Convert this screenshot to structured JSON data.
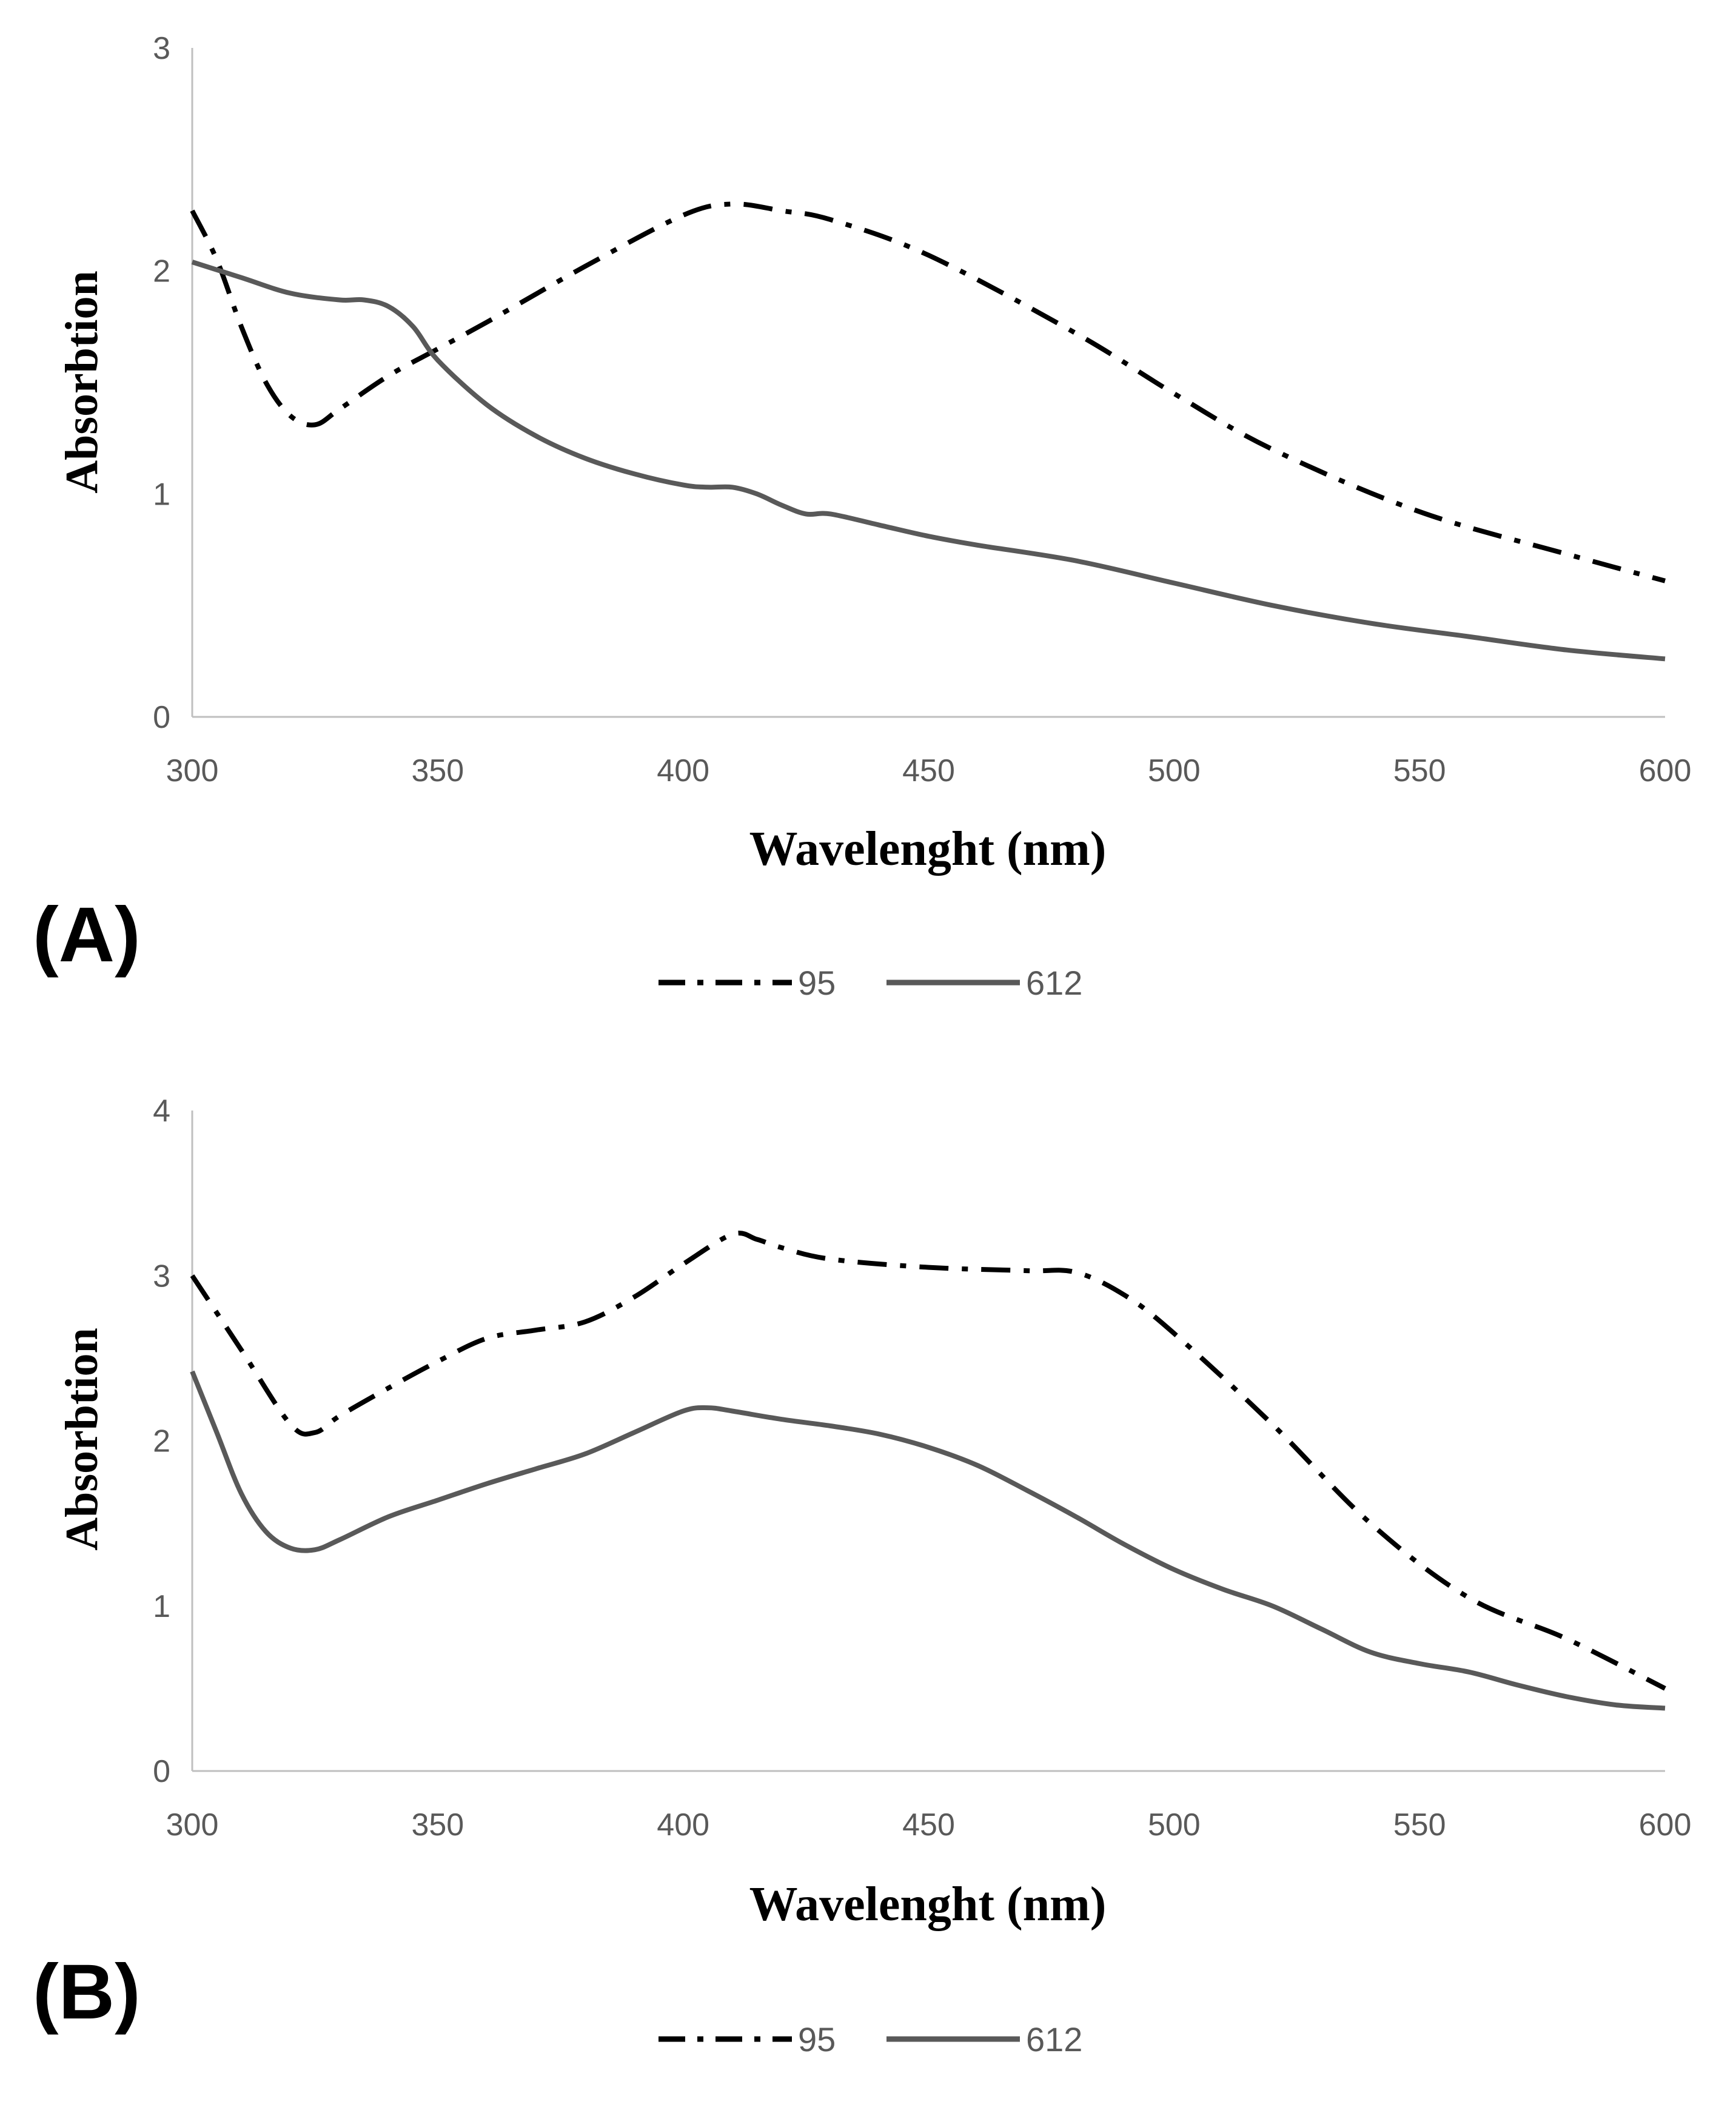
{
  "colors": {
    "series_95": "#000000",
    "series_612": "#595959",
    "axis": "#bfbfbf",
    "tick_text": "#595959"
  },
  "chart_data": [
    {
      "panel_label": "(A)",
      "type": "line",
      "xlabel": "Wavelenght (nm)",
      "ylabel": "Absorbtion",
      "xlim": [
        300,
        600
      ],
      "ylim": [
        0,
        3
      ],
      "x_ticks": [
        "300",
        "350",
        "400",
        "450",
        "500",
        "550",
        "600"
      ],
      "y_ticks": [
        "0",
        "1",
        "2",
        "3"
      ],
      "legend": [
        "95",
        "612"
      ],
      "legend_position": "bottom-center",
      "grid": false,
      "series": [
        {
          "name": "95",
          "style": "dash-dot",
          "x": [
            300,
            305,
            310,
            315,
            320,
            325,
            330,
            340,
            350,
            360,
            380,
            400,
            410,
            420,
            430,
            450,
            480,
            500,
            520,
            550,
            580,
            600
          ],
          "y": [
            2.27,
            2.05,
            1.75,
            1.5,
            1.35,
            1.31,
            1.38,
            1.53,
            1.65,
            1.77,
            2.02,
            2.25,
            2.3,
            2.27,
            2.23,
            2.07,
            1.72,
            1.45,
            1.2,
            0.92,
            0.73,
            0.61
          ]
        },
        {
          "name": "612",
          "style": "solid",
          "x": [
            300,
            310,
            320,
            330,
            335,
            340,
            345,
            350,
            360,
            370,
            380,
            390,
            400,
            405,
            410,
            415,
            420,
            425,
            430,
            440,
            450,
            460,
            480,
            500,
            520,
            540,
            560,
            580,
            600
          ],
          "y": [
            2.04,
            1.97,
            1.9,
            1.87,
            1.87,
            1.84,
            1.75,
            1.6,
            1.4,
            1.26,
            1.16,
            1.09,
            1.04,
            1.03,
            1.03,
            1.0,
            0.95,
            0.91,
            0.91,
            0.86,
            0.81,
            0.77,
            0.7,
            0.6,
            0.5,
            0.42,
            0.36,
            0.3,
            0.26
          ]
        }
      ]
    },
    {
      "panel_label": "(B)",
      "type": "line",
      "xlabel": "Wavelenght (nm)",
      "ylabel": "Absorbtion",
      "xlim": [
        300,
        600
      ],
      "ylim": [
        0,
        4
      ],
      "x_ticks": [
        "300",
        "350",
        "400",
        "450",
        "500",
        "550",
        "600"
      ],
      "y_ticks": [
        "0",
        "1",
        "2",
        "3",
        "4"
      ],
      "legend": [
        "95",
        "612"
      ],
      "legend_position": "bottom-center",
      "grid": false,
      "series": [
        {
          "name": "95",
          "style": "dash-dot",
          "x": [
            300,
            310,
            320,
            325,
            330,
            340,
            350,
            360,
            370,
            380,
            390,
            400,
            410,
            415,
            420,
            430,
            450,
            470,
            480,
            490,
            500,
            520,
            540,
            560,
            580,
            600
          ],
          "y": [
            3.0,
            2.55,
            2.1,
            2.05,
            2.15,
            2.32,
            2.48,
            2.62,
            2.67,
            2.72,
            2.87,
            3.07,
            3.25,
            3.22,
            3.17,
            3.1,
            3.05,
            3.03,
            3.02,
            2.88,
            2.65,
            2.1,
            1.5,
            1.05,
            0.8,
            0.5
          ]
        },
        {
          "name": "612",
          "style": "solid",
          "x": [
            300,
            305,
            310,
            315,
            320,
            325,
            330,
            340,
            350,
            360,
            370,
            380,
            390,
            400,
            405,
            410,
            420,
            430,
            440,
            450,
            460,
            470,
            480,
            490,
            500,
            510,
            520,
            530,
            540,
            550,
            560,
            570,
            580,
            590,
            600
          ],
          "y": [
            2.42,
            2.05,
            1.68,
            1.45,
            1.35,
            1.34,
            1.4,
            1.54,
            1.64,
            1.74,
            1.83,
            1.92,
            2.05,
            2.18,
            2.2,
            2.18,
            2.13,
            2.09,
            2.04,
            1.96,
            1.85,
            1.7,
            1.54,
            1.37,
            1.22,
            1.1,
            1.0,
            0.86,
            0.72,
            0.65,
            0.6,
            0.52,
            0.45,
            0.4,
            0.38
          ]
        }
      ]
    }
  ]
}
